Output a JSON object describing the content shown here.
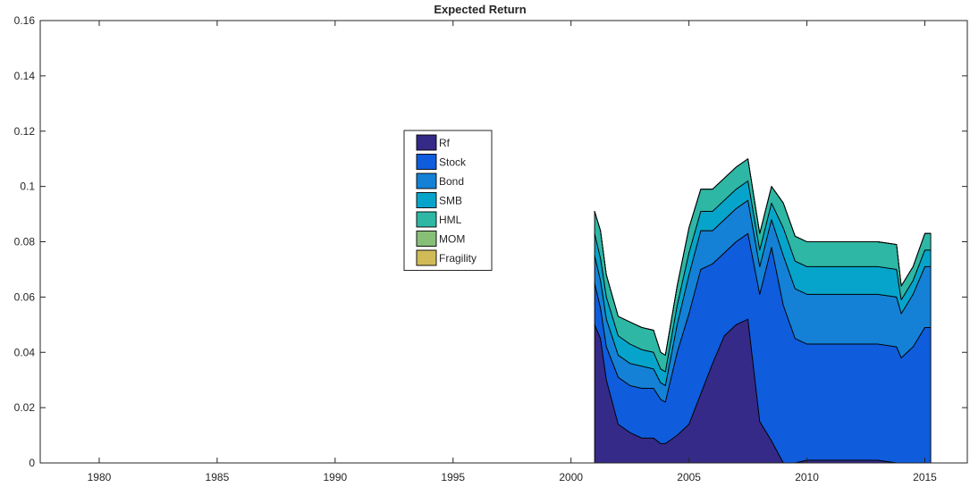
{
  "chart_data": {
    "type": "area",
    "title": "Expected Return",
    "xlabel": "",
    "ylabel": "",
    "xlim": [
      1977.5,
      2016.8
    ],
    "ylim": [
      0,
      0.16
    ],
    "xticks": [
      1980,
      1985,
      1990,
      1995,
      2000,
      2005,
      2010,
      2015
    ],
    "xtick_labels": [
      "1980",
      "1985",
      "1990",
      "1995",
      "2000",
      "2005",
      "2010",
      "2015"
    ],
    "yticks": [
      0,
      0.02,
      0.04,
      0.06,
      0.08,
      0.1,
      0.12,
      0.14,
      0.16
    ],
    "ytick_labels": [
      "0",
      "0.02",
      "0.04",
      "0.06",
      "0.08",
      "0.1",
      "0.12",
      "0.14",
      "0.16"
    ],
    "stacked": true,
    "grid": false,
    "legend_position": "upper-center",
    "x": [
      2001.0,
      2001.25,
      2001.5,
      2002.0,
      2002.5,
      2003.0,
      2003.5,
      2003.8,
      2004.0,
      2004.5,
      2005.0,
      2005.5,
      2006.0,
      2006.5,
      2007.0,
      2007.5,
      2008.0,
      2008.5,
      2009.0,
      2009.5,
      2010.0,
      2011.0,
      2012.0,
      2013.0,
      2013.8,
      2014.0,
      2014.5,
      2015.0,
      2015.25
    ],
    "series": [
      {
        "name": "Rf",
        "color": "#352a87",
        "values": [
          0.05,
          0.045,
          0.03,
          0.014,
          0.011,
          0.009,
          0.009,
          0.007,
          0.007,
          0.01,
          0.014,
          0.025,
          0.036,
          0.046,
          0.05,
          0.052,
          0.015,
          0.008,
          0.0,
          0.0,
          0.001,
          0.001,
          0.001,
          0.001,
          0.0,
          0.0,
          0.0,
          0.0,
          0.0
        ]
      },
      {
        "name": "Stock",
        "color": "#0f5cdd",
        "values": [
          0.015,
          0.011,
          0.012,
          0.017,
          0.017,
          0.018,
          0.018,
          0.016,
          0.015,
          0.03,
          0.04,
          0.045,
          0.036,
          0.03,
          0.03,
          0.031,
          0.046,
          0.07,
          0.057,
          0.045,
          0.042,
          0.042,
          0.042,
          0.042,
          0.042,
          0.038,
          0.042,
          0.049,
          0.049
        ]
      },
      {
        "name": "Bond",
        "color": "#1481d6",
        "values": [
          0.01,
          0.01,
          0.01,
          0.008,
          0.008,
          0.008,
          0.007,
          0.006,
          0.006,
          0.01,
          0.014,
          0.014,
          0.012,
          0.012,
          0.012,
          0.012,
          0.01,
          0.01,
          0.018,
          0.018,
          0.018,
          0.018,
          0.018,
          0.018,
          0.018,
          0.016,
          0.019,
          0.022,
          0.022
        ]
      },
      {
        "name": "SMB",
        "color": "#06a4ca",
        "values": [
          0.008,
          0.008,
          0.008,
          0.007,
          0.007,
          0.006,
          0.006,
          0.005,
          0.005,
          0.007,
          0.008,
          0.007,
          0.007,
          0.007,
          0.007,
          0.007,
          0.006,
          0.006,
          0.01,
          0.01,
          0.01,
          0.01,
          0.01,
          0.01,
          0.01,
          0.005,
          0.005,
          0.006,
          0.006
        ]
      },
      {
        "name": "HML",
        "color": "#2eb7a4",
        "values": [
          0.008,
          0.01,
          0.008,
          0.007,
          0.008,
          0.008,
          0.008,
          0.006,
          0.006,
          0.007,
          0.009,
          0.008,
          0.008,
          0.008,
          0.008,
          0.008,
          0.006,
          0.006,
          0.009,
          0.009,
          0.009,
          0.009,
          0.009,
          0.009,
          0.009,
          0.005,
          0.005,
          0.006,
          0.006
        ]
      },
      {
        "name": "MOM",
        "color": "#87bf77",
        "values": [
          0.0,
          0.0,
          0.0,
          0.0,
          0.0,
          0.0,
          0.0,
          0.0,
          0.0,
          0.0,
          0.0,
          0.0,
          0.0,
          0.0,
          0.0,
          0.0,
          0.0,
          0.0,
          0.0,
          0.0,
          0.0,
          0.0,
          0.0,
          0.0,
          0.0,
          0.0,
          0.0,
          0.0,
          0.0
        ]
      },
      {
        "name": "Fragility",
        "color": "#d1bb59",
        "values": [
          0.0,
          0.0,
          0.0,
          0.0,
          0.0,
          0.0,
          0.0,
          0.0,
          0.0,
          0.0,
          0.0,
          0.0,
          0.0,
          0.0,
          0.0,
          0.0,
          0.0,
          0.0,
          0.0,
          0.0,
          0.0,
          0.0,
          0.0,
          0.0,
          0.0,
          0.0,
          0.0,
          0.0,
          0.0
        ]
      }
    ]
  }
}
